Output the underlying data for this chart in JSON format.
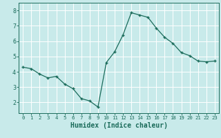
{
  "x": [
    0,
    1,
    2,
    3,
    4,
    5,
    6,
    7,
    8,
    9,
    10,
    11,
    12,
    13,
    14,
    15,
    16,
    17,
    18,
    19,
    20,
    21,
    22,
    23
  ],
  "y": [
    4.3,
    4.2,
    3.85,
    3.6,
    3.7,
    3.2,
    2.9,
    2.25,
    2.1,
    1.7,
    4.6,
    5.3,
    6.4,
    7.85,
    7.7,
    7.55,
    6.85,
    6.25,
    5.85,
    5.25,
    5.05,
    4.7,
    4.65,
    4.7
  ],
  "xlabel": "Humidex (Indice chaleur)",
  "xlim": [
    -0.5,
    23.5
  ],
  "ylim": [
    1.3,
    8.5
  ],
  "yticks": [
    2,
    3,
    4,
    5,
    6,
    7,
    8
  ],
  "xticks": [
    0,
    1,
    2,
    3,
    4,
    5,
    6,
    7,
    8,
    9,
    10,
    11,
    12,
    13,
    14,
    15,
    16,
    17,
    18,
    19,
    20,
    21,
    22,
    23
  ],
  "line_color": "#1a6b5a",
  "marker": "+",
  "bg_color": "#c8eaea",
  "grid_color": "#ffffff",
  "tick_color": "#1a6b5a",
  "xlabel_color": "#1a6b5a",
  "tick_fontsize": 6,
  "xlabel_fontsize": 7
}
